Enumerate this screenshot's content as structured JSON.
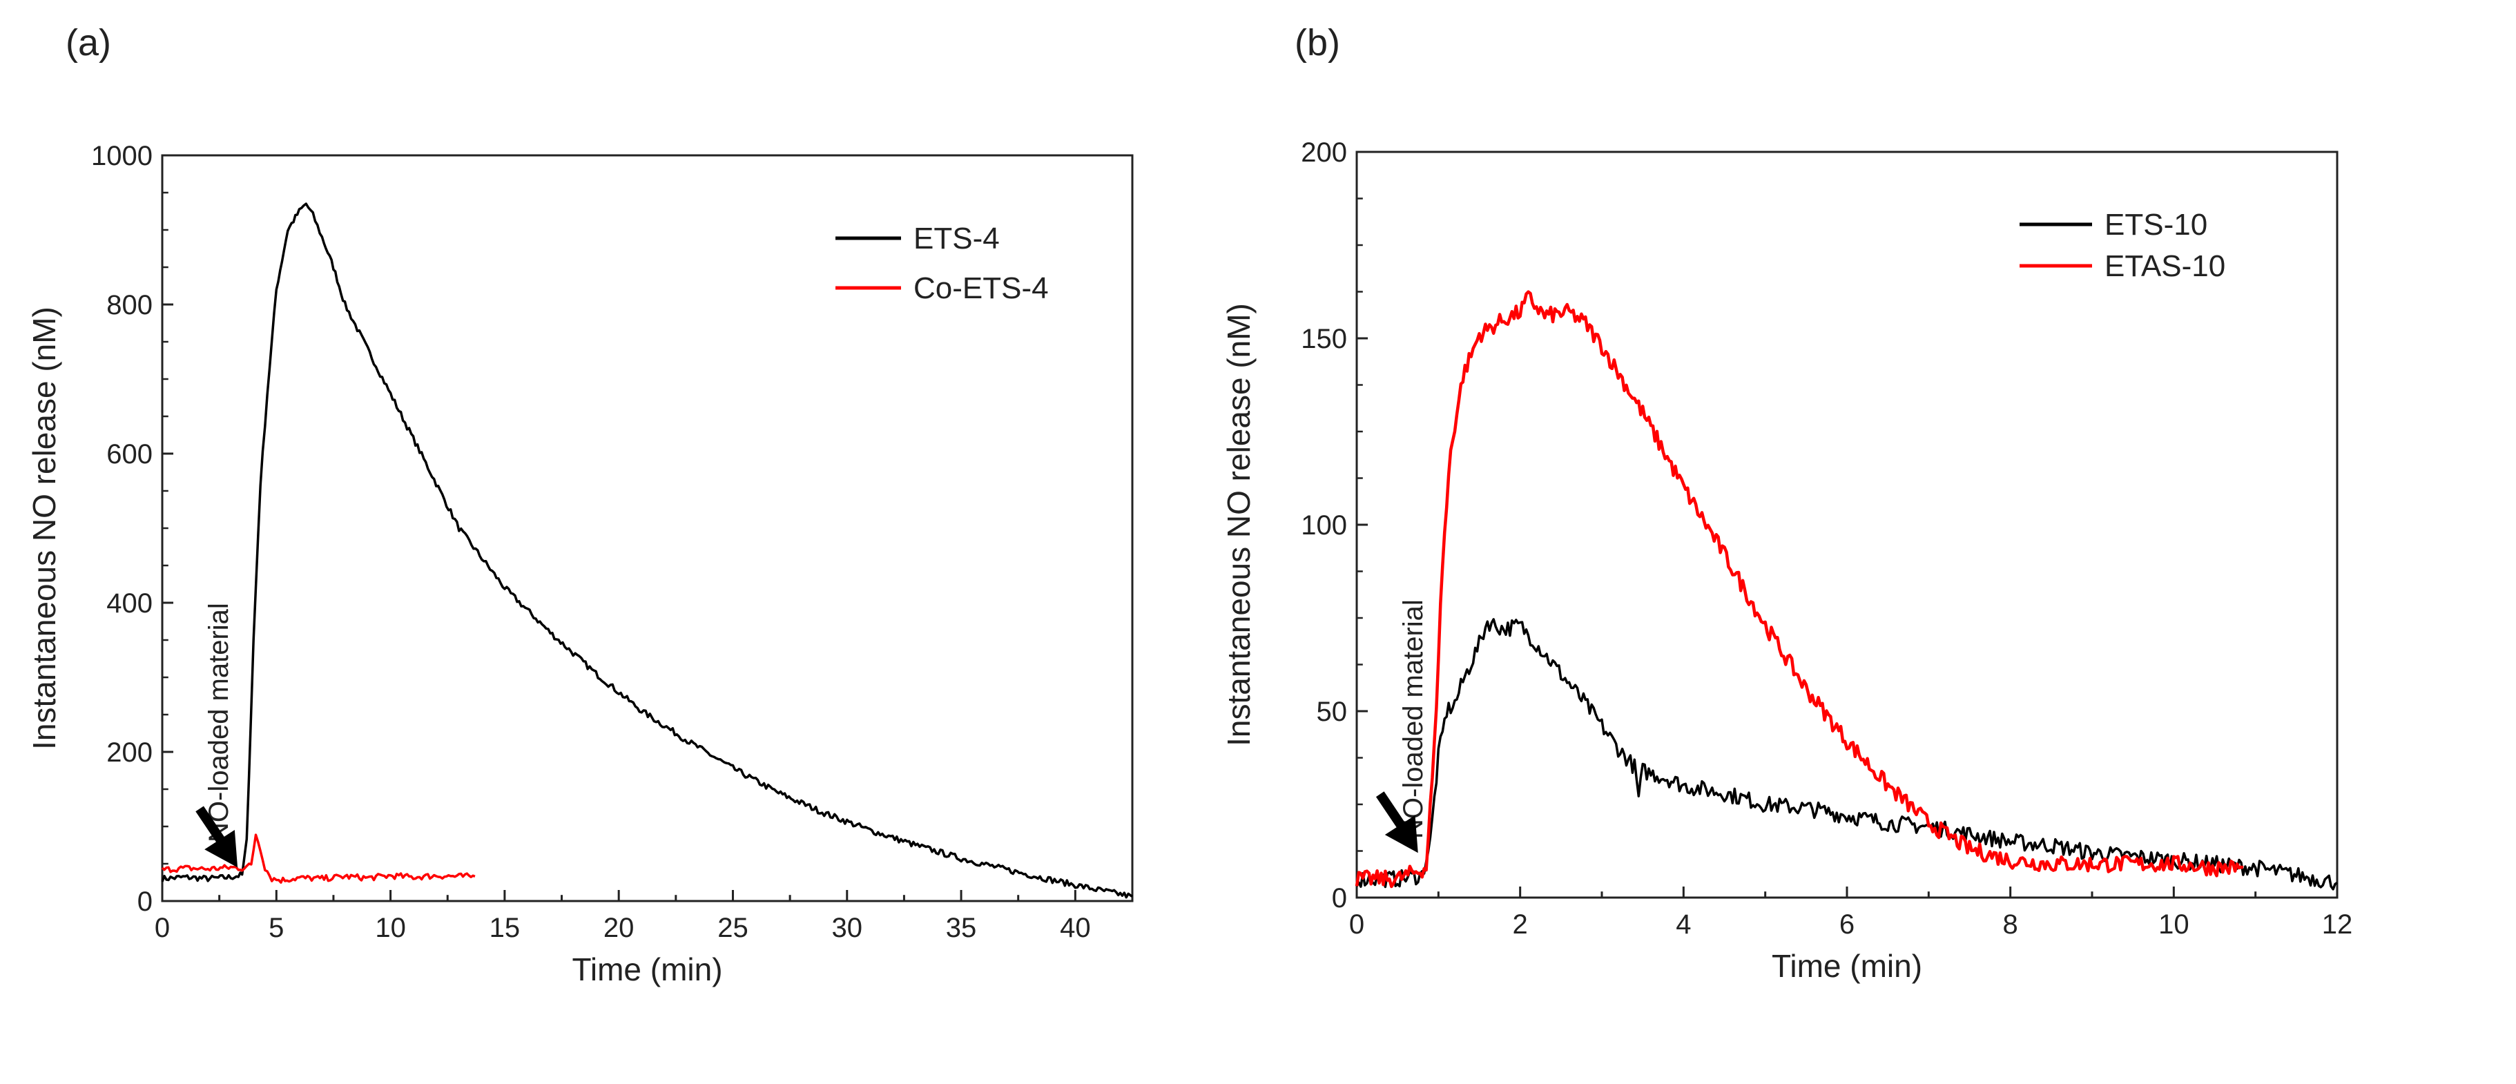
{
  "chart_data": [
    {
      "panel": "(a)",
      "type": "line",
      "xlabel": "Time (min)",
      "ylabel": "Instantaneous NO release (nM)",
      "xlim": [
        0,
        42.5
      ],
      "ylim": [
        0,
        1000
      ],
      "xticks": [
        0,
        5,
        10,
        15,
        20,
        25,
        30,
        35,
        40
      ],
      "yticks": [
        0,
        200,
        400,
        600,
        800,
        1000
      ],
      "legend_position": "top-right",
      "annotation": {
        "text": "NO-loaded material",
        "arrow_target": [
          3.3,
          45
        ]
      },
      "series": [
        {
          "name": "ETS-4",
          "color": "#000000",
          "x": [
            0,
            1,
            2,
            3,
            3.5,
            3.7,
            4.0,
            4.3,
            4.6,
            5.0,
            5.5,
            6.0,
            6.3,
            6.6,
            7.0,
            7.5,
            8.0,
            9,
            10,
            11,
            12,
            13,
            14,
            15,
            17,
            19,
            20,
            21,
            23,
            25,
            27,
            29,
            31,
            33,
            35,
            37,
            39,
            41,
            42.5
          ],
          "y": [
            30,
            32,
            30,
            32,
            35,
            80,
            350,
            560,
            680,
            820,
            900,
            925,
            935,
            920,
            890,
            850,
            800,
            740,
            680,
            620,
            560,
            500,
            460,
            420,
            360,
            305,
            280,
            255,
            215,
            178,
            145,
            118,
            95,
            75,
            57,
            42,
            28,
            15,
            6
          ]
        },
        {
          "name": "Co-ETS-4",
          "color": "#ff0000",
          "x": [
            0,
            1,
            2,
            3,
            3.5,
            3.9,
            4.1,
            4.3,
            4.5,
            4.8,
            5.2,
            6,
            7,
            8,
            9,
            10,
            11,
            12,
            13,
            13.7
          ],
          "y": [
            42,
            44,
            43,
            45,
            44,
            48,
            90,
            70,
            45,
            30,
            28,
            31,
            30,
            33,
            31,
            34,
            32,
            34,
            33,
            33
          ]
        }
      ]
    },
    {
      "panel": "(b)",
      "type": "line",
      "xlabel": "Time (min)",
      "ylabel": "Instantaneous NO release (nM)",
      "xlim": [
        0,
        12
      ],
      "ylim": [
        0,
        200
      ],
      "xticks": [
        0,
        2,
        4,
        6,
        8,
        10,
        12
      ],
      "yticks": [
        0,
        50,
        100,
        150,
        200
      ],
      "legend_position": "top-right",
      "annotation": {
        "text": "NO-loaded material",
        "arrow_target": [
          0.75,
          12
        ]
      },
      "series": [
        {
          "name": "ETS-10",
          "color": "#000000",
          "x": [
            0,
            0.5,
            0.8,
            0.9,
            1.0,
            1.1,
            1.2,
            1.3,
            1.5,
            1.6,
            1.8,
            2.0,
            2.2,
            2.5,
            2.8,
            3.0,
            3.2,
            3.4,
            3.45,
            3.5,
            3.8,
            4.0,
            4.5,
            5,
            5.5,
            6,
            6.5,
            7,
            7.5,
            8,
            8.5,
            9,
            9.5,
            10,
            10.5,
            11,
            11.5,
            12
          ],
          "y": [
            5,
            5,
            6,
            15,
            38,
            50,
            52,
            58,
            68,
            74,
            72,
            73,
            68,
            60,
            52,
            46,
            40,
            35,
            27,
            34,
            32,
            30,
            28,
            25,
            24,
            22,
            20,
            19,
            17,
            15,
            14,
            12,
            11,
            10,
            9,
            8,
            6,
            4
          ]
        },
        {
          "name": "ETAS-10",
          "color": "#ff0000",
          "x": [
            0,
            0.5,
            0.85,
            0.95,
            1.05,
            1.15,
            1.3,
            1.5,
            1.8,
            2.0,
            2.1,
            2.3,
            2.6,
            2.8,
            3.0,
            3.5,
            4.0,
            4.5,
            5.0,
            5.5,
            6.0,
            6.5,
            7.0,
            7.5,
            8.0,
            8.5,
            9.0,
            9.5,
            10,
            10.5,
            10.85
          ],
          "y": [
            5,
            5,
            8,
            40,
            90,
            120,
            140,
            151,
            155,
            157,
            161,
            156,
            157,
            154,
            148,
            130,
            110,
            92,
            73,
            56,
            42,
            30,
            20,
            13,
            10,
            9,
            9,
            9,
            9,
            8,
            8
          ]
        }
      ]
    }
  ]
}
